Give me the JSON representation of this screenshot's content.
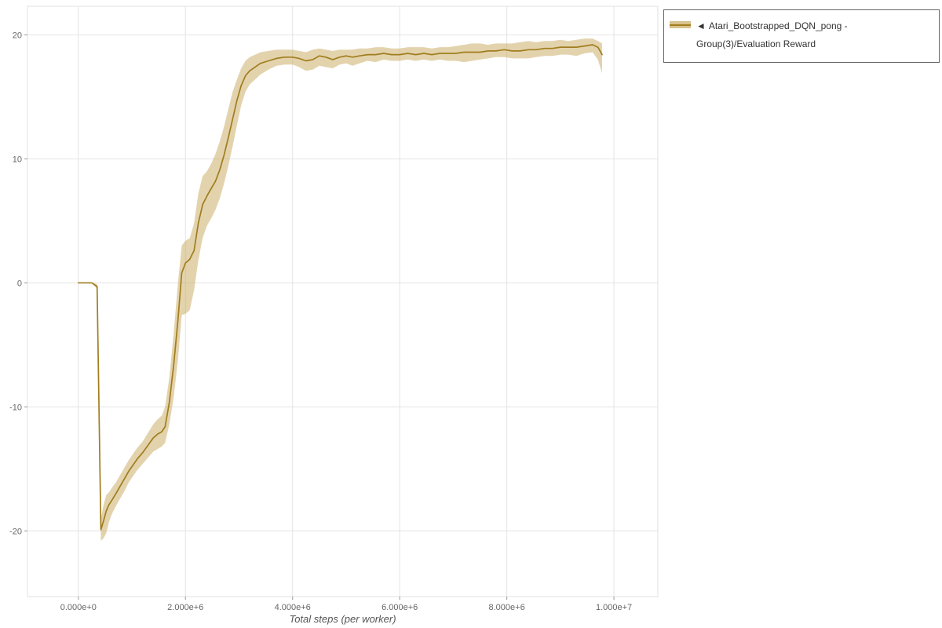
{
  "page": {
    "background": "#ffffff"
  },
  "chart_data": {
    "type": "line",
    "title": "",
    "xlabel": "Total steps (per worker)",
    "ylabel": "",
    "grid": true,
    "legend_position": "top-right-outside",
    "x_range": [
      -950000,
      10820000
    ],
    "y_range": [
      -25.3,
      22.3
    ],
    "x_ticks": {
      "values": [
        0,
        2000000,
        4000000,
        6000000,
        8000000,
        10000000
      ],
      "labels": [
        "0.000e+0",
        "2.000e+6",
        "4.000e+6",
        "6.000e+6",
        "8.000e+6",
        "1.000e+7"
      ]
    },
    "y_ticks": {
      "values": [
        -20,
        -10,
        0,
        10,
        20
      ],
      "labels": [
        "-20",
        "-10",
        "0",
        "10",
        "20"
      ]
    },
    "colors": {
      "grid": "#e4e4e4",
      "plot_border": "#e0e0e0",
      "tick": "#999999",
      "axis_text": "#666666"
    },
    "series": [
      {
        "name": "Atari_Bootstrapped_DQN_pong - Group(3)/Evaluation Reward",
        "line_color": "#a07d1d",
        "band_color": "#c8a85c",
        "band_opacity": 0.5,
        "x": [
          0,
          250000,
          350000,
          420000,
          470000,
          520000,
          570000,
          630000,
          700000,
          780000,
          860000,
          940000,
          1020000,
          1100000,
          1200000,
          1300000,
          1400000,
          1480000,
          1560000,
          1620000,
          1700000,
          1780000,
          1860000,
          1930000,
          2000000,
          2080000,
          2160000,
          2240000,
          2320000,
          2400000,
          2480000,
          2560000,
          2640000,
          2720000,
          2800000,
          2880000,
          2960000,
          3040000,
          3120000,
          3200000,
          3300000,
          3400000,
          3550000,
          3700000,
          3850000,
          4000000,
          4120000,
          4250000,
          4380000,
          4500000,
          4620000,
          4750000,
          4880000,
          5000000,
          5120000,
          5250000,
          5400000,
          5550000,
          5700000,
          5850000,
          6000000,
          6150000,
          6300000,
          6450000,
          6600000,
          6750000,
          6900000,
          7050000,
          7200000,
          7350000,
          7500000,
          7650000,
          7800000,
          7950000,
          8100000,
          8250000,
          8400000,
          8550000,
          8700000,
          8850000,
          9000000,
          9150000,
          9300000,
          9450000,
          9600000,
          9700000,
          9780000
        ],
        "y": [
          0,
          0,
          -0.3,
          -19.9,
          -19.2,
          -18.4,
          -17.9,
          -17.5,
          -17.0,
          -16.4,
          -15.8,
          -15.2,
          -14.7,
          -14.2,
          -13.7,
          -13.1,
          -12.5,
          -12.2,
          -12.0,
          -11.6,
          -9.6,
          -6.6,
          -3.0,
          0.8,
          1.6,
          1.9,
          2.6,
          4.8,
          6.3,
          7.0,
          7.6,
          8.2,
          9.1,
          10.3,
          11.7,
          13.2,
          14.7,
          15.9,
          16.7,
          17.1,
          17.4,
          17.7,
          17.9,
          18.1,
          18.2,
          18.2,
          18.1,
          17.9,
          18.0,
          18.3,
          18.2,
          18.0,
          18.2,
          18.3,
          18.2,
          18.3,
          18.4,
          18.4,
          18.5,
          18.4,
          18.4,
          18.5,
          18.4,
          18.5,
          18.4,
          18.5,
          18.5,
          18.5,
          18.6,
          18.6,
          18.6,
          18.7,
          18.7,
          18.8,
          18.7,
          18.7,
          18.8,
          18.8,
          18.9,
          18.9,
          19.0,
          19.0,
          19.0,
          19.1,
          19.2,
          19.0,
          18.4
        ],
        "y_lower": [
          0,
          0,
          -0.5,
          -20.8,
          -20.6,
          -20.2,
          -19.3,
          -18.6,
          -18.0,
          -17.4,
          -16.8,
          -16.1,
          -15.6,
          -15.1,
          -14.6,
          -14.1,
          -13.6,
          -13.4,
          -13.2,
          -12.9,
          -11.4,
          -9.2,
          -6.2,
          -2.6,
          -2.5,
          -2.2,
          -0.6,
          1.8,
          3.6,
          4.6,
          5.2,
          5.9,
          6.8,
          8.0,
          9.4,
          11.0,
          12.7,
          14.3,
          15.4,
          16.0,
          16.4,
          16.8,
          17.2,
          17.5,
          17.6,
          17.6,
          17.4,
          17.1,
          17.2,
          17.5,
          17.4,
          17.3,
          17.6,
          17.7,
          17.5,
          17.7,
          17.9,
          17.8,
          18.0,
          17.9,
          17.9,
          18.0,
          17.9,
          18.0,
          17.9,
          18.0,
          17.9,
          17.9,
          17.8,
          17.9,
          18.0,
          18.1,
          18.2,
          18.2,
          18.1,
          18.1,
          18.1,
          18.2,
          18.3,
          18.3,
          18.4,
          18.4,
          18.3,
          18.5,
          18.6,
          18.0,
          16.9
        ],
        "y_upper": [
          0,
          0,
          -0.1,
          -19.0,
          -17.9,
          -17.1,
          -16.9,
          -16.5,
          -16.1,
          -15.5,
          -14.9,
          -14.3,
          -13.8,
          -13.3,
          -12.8,
          -12.1,
          -11.4,
          -11.0,
          -10.7,
          -10.0,
          -7.6,
          -4.0,
          0.0,
          3.0,
          3.4,
          3.6,
          4.8,
          7.2,
          8.6,
          9.0,
          9.6,
          10.4,
          11.4,
          12.6,
          14.0,
          15.4,
          16.4,
          17.3,
          17.9,
          18.2,
          18.4,
          18.6,
          18.7,
          18.8,
          18.8,
          18.8,
          18.7,
          18.6,
          18.8,
          18.9,
          18.8,
          18.7,
          18.8,
          18.8,
          18.8,
          18.9,
          18.9,
          19.0,
          19.0,
          18.9,
          18.9,
          19.0,
          19.0,
          19.0,
          18.9,
          19.0,
          19.0,
          19.1,
          19.2,
          19.3,
          19.3,
          19.2,
          19.3,
          19.3,
          19.3,
          19.4,
          19.5,
          19.4,
          19.5,
          19.5,
          19.6,
          19.5,
          19.6,
          19.7,
          19.7,
          19.5,
          19.3
        ]
      }
    ]
  },
  "legend": {
    "position": "top-right-outside",
    "toggle_icon": "◄",
    "label": "Atari_Bootstrapped_DQN_pong - Group(3)/Evaluation Reward"
  }
}
